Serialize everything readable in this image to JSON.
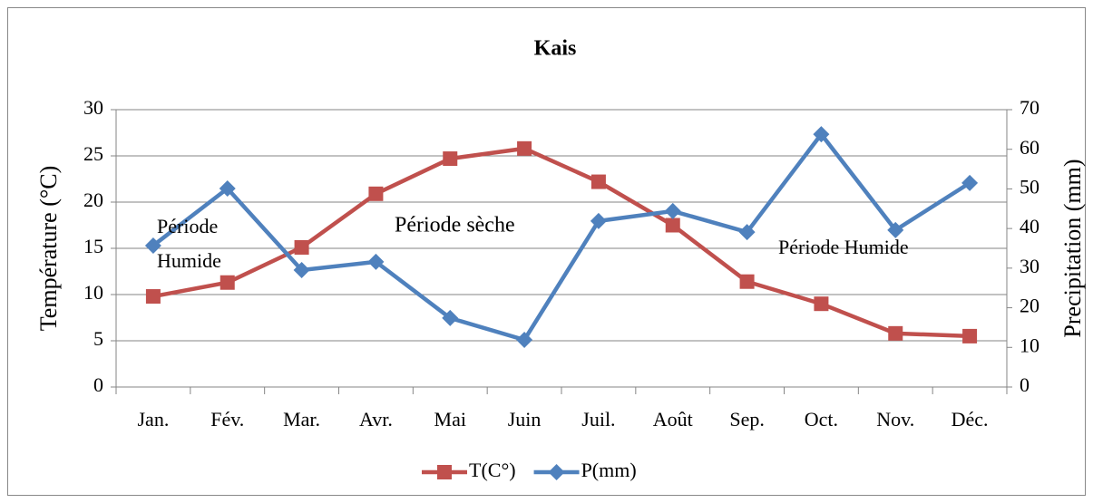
{
  "chart_data": {
    "type": "line",
    "title": "Kais",
    "categories": [
      "Jan.",
      "Fév.",
      "Mar.",
      "Avr.",
      "Mai",
      "Juin",
      "Juil.",
      "Août",
      "Sep.",
      "Oct.",
      "Nov.",
      "Déc."
    ],
    "series": [
      {
        "name": "T(C°)",
        "color": "#c0504d",
        "marker": "square",
        "values": [
          9.8,
          11.3,
          15.1,
          20.9,
          24.7,
          25.8,
          22.2,
          17.5,
          11.4,
          9.0,
          5.8,
          5.5
        ]
      },
      {
        "name": "P(mm)",
        "color": "#4f81bd",
        "marker": "diamond",
        "axis": "y2",
        "values": [
          35.7,
          50.1,
          29.5,
          31.6,
          17.4,
          11.9,
          41.9,
          44.4,
          39.1,
          63.8,
          39.6,
          51.5
        ]
      }
    ],
    "ylabel": "Température (°C)",
    "y2label": "Precipitation (mm)",
    "ylim": [
      0,
      30
    ],
    "yticks": [
      0,
      5,
      10,
      15,
      20,
      25,
      30
    ],
    "y2lim": [
      0,
      70
    ],
    "y2ticks": [
      0,
      10,
      20,
      30,
      40,
      50,
      60,
      70
    ],
    "grid": true,
    "legend": "bottom",
    "annotations": [
      {
        "lines": [
          "Période",
          "Humide"
        ]
      },
      {
        "lines": [
          "Période sèche"
        ]
      },
      {
        "lines": [
          "Période Humide"
        ]
      }
    ]
  }
}
